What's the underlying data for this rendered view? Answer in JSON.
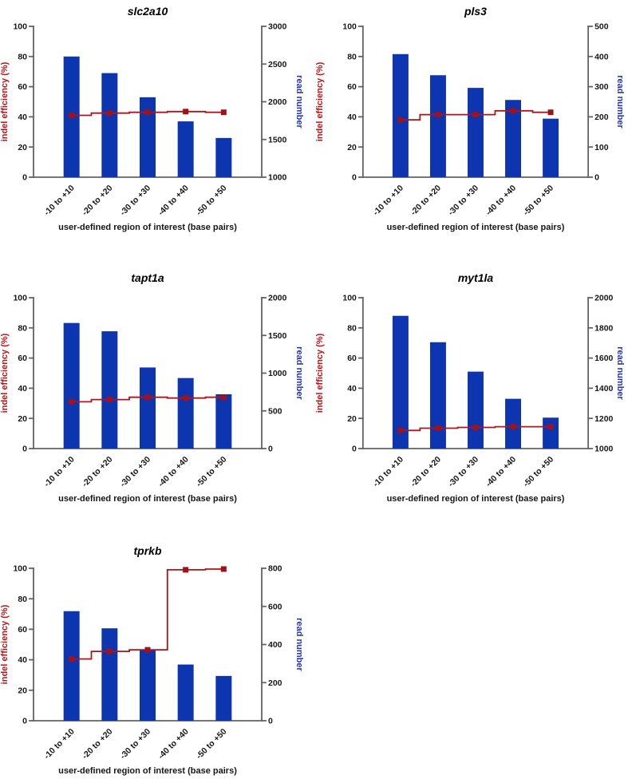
{
  "figure": {
    "description": "Five dual-axis bar and step-line charts of CRISPR indel efficiency and read number per user-defined region of interest",
    "colors": {
      "bar_blue": "#0e35b0",
      "line_red": "#b01419",
      "marker_red": "#a31015",
      "left_axis_title_red": "#c11217",
      "right_axis_title_blue": "#2433b8",
      "axis_gray": "#636363",
      "tick_text": "#161616",
      "title_text": "#000000"
    }
  },
  "chart_data": [
    {
      "type": "bar+line",
      "title": "slc2a10",
      "categories": [
        "-10 to +10",
        "-20 to +20",
        "-30 to +30",
        "-40 to +40",
        "-50 to +50"
      ],
      "xlabel": "user-defined region of interest (base pairs)",
      "left_axis": {
        "label": "indel efficiency (%)",
        "min": 0,
        "max": 100,
        "ticks": [
          0,
          20,
          40,
          60,
          80,
          100
        ]
      },
      "right_axis": {
        "label": "read number",
        "min": 1000,
        "max": 3000,
        "ticks": [
          1000,
          1500,
          2000,
          2500,
          3000
        ]
      },
      "series": [
        {
          "name": "read number",
          "type": "bar",
          "axis": "right",
          "values": [
            2600,
            2380,
            2060,
            1740,
            1520
          ]
        },
        {
          "name": "indel efficiency (%)",
          "type": "line",
          "axis": "left",
          "values": [
            41,
            42.5,
            43,
            43.5,
            43
          ]
        }
      ],
      "legend": "none",
      "grid": false
    },
    {
      "type": "bar+line",
      "title": "pls3",
      "categories": [
        "-10 to +10",
        "-20 to +20",
        "-30 to +30",
        "-40 to +40",
        "-50 to +50"
      ],
      "xlabel": "user-defined region of interest (base pairs)",
      "left_axis": {
        "label": "indel efficiency (%)",
        "min": 0,
        "max": 100,
        "ticks": [
          0,
          20,
          40,
          60,
          80,
          100
        ]
      },
      "right_axis": {
        "label": "read number",
        "min": 0,
        "max": 500,
        "ticks": [
          0,
          100,
          200,
          300,
          400,
          500
        ]
      },
      "series": [
        {
          "name": "read number",
          "type": "bar",
          "axis": "right",
          "values": [
            408,
            338,
            296,
            256,
            194
          ]
        },
        {
          "name": "indel efficiency (%)",
          "type": "line",
          "axis": "left",
          "values": [
            38,
            41.5,
            41.5,
            44,
            43
          ]
        }
      ],
      "legend": "none",
      "grid": false
    },
    {
      "type": "bar+line",
      "title": "tapt1a",
      "categories": [
        "-10 to +10",
        "-20 to +20",
        "-30 to +30",
        "-40 to +40",
        "-50 to +50"
      ],
      "xlabel": "user-defined region of interest (base pairs)",
      "left_axis": {
        "label": "indel efficiency (%)",
        "min": 0,
        "max": 100,
        "ticks": [
          0,
          20,
          40,
          60,
          80,
          100
        ]
      },
      "right_axis": {
        "label": "read number",
        "min": 0,
        "max": 2000,
        "ticks": [
          0,
          500,
          1000,
          1500,
          2000
        ]
      },
      "series": [
        {
          "name": "read number",
          "type": "bar",
          "axis": "right",
          "values": [
            1665,
            1555,
            1075,
            935,
            720
          ]
        },
        {
          "name": "indel efficiency (%)",
          "type": "line",
          "axis": "left",
          "values": [
            31,
            32.5,
            34,
            33.5,
            34
          ]
        }
      ],
      "legend": "none",
      "grid": false
    },
    {
      "type": "bar+line",
      "title": "myt1la",
      "categories": [
        "-10 to +10",
        "-20 to +20",
        "-30 to +30",
        "-40 to +40",
        "-50 to +50"
      ],
      "xlabel": "user-defined region of interest (base pairs)",
      "left_axis": {
        "label": "indel efficiency (%)",
        "min": 0,
        "max": 100,
        "ticks": [
          0,
          20,
          40,
          60,
          80,
          100
        ]
      },
      "right_axis": {
        "label": "read number",
        "min": 1000,
        "max": 2000,
        "ticks": [
          1000,
          1200,
          1400,
          1600,
          1800,
          2000
        ]
      },
      "series": [
        {
          "name": "read number",
          "type": "bar",
          "axis": "right",
          "values": [
            1880,
            1705,
            1510,
            1330,
            1205
          ]
        },
        {
          "name": "indel efficiency (%)",
          "type": "line",
          "axis": "left",
          "values": [
            12,
            13.5,
            14,
            14.5,
            14.5
          ]
        }
      ],
      "legend": "none",
      "grid": false
    },
    {
      "type": "bar+line",
      "title": "tprkb",
      "categories": [
        "-10 to +10",
        "-20 to +20",
        "-30 to +30",
        "-40 to +40",
        "-50 to +50"
      ],
      "xlabel": "user-defined region of interest (base pairs)",
      "left_axis": {
        "label": "indel efficiency (%)",
        "min": 0,
        "max": 100,
        "ticks": [
          0,
          20,
          40,
          60,
          80,
          100
        ]
      },
      "right_axis": {
        "label": "read number",
        "min": 0,
        "max": 800,
        "ticks": [
          0,
          200,
          400,
          600,
          800
        ]
      },
      "series": [
        {
          "name": "read number",
          "type": "bar",
          "axis": "right",
          "values": [
            575,
            485,
            372,
            295,
            235
          ]
        },
        {
          "name": "indel efficiency (%)",
          "type": "line",
          "axis": "left",
          "values": [
            40.5,
            45.5,
            46.5,
            99,
            99.5
          ]
        }
      ],
      "legend": "none",
      "grid": false
    }
  ]
}
